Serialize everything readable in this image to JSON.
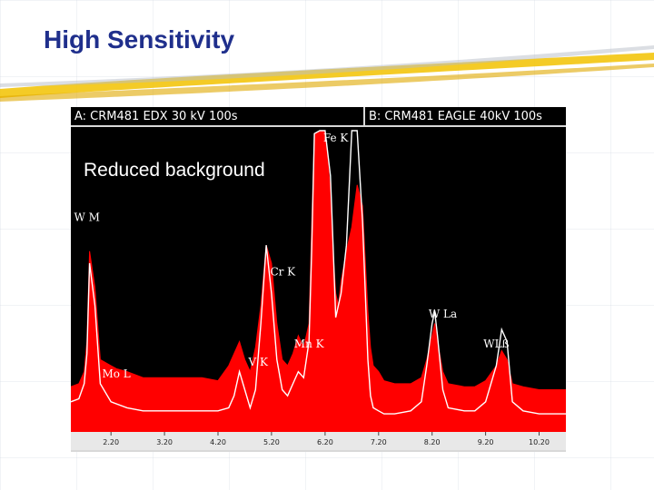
{
  "slide": {
    "title": "High Sensitivity"
  },
  "colors": {
    "title": "#1f2f8c",
    "spectrum_a_fill": "#ff0000",
    "spectrum_b_line": "#ffffff",
    "plot_background": "#000000",
    "swoosh": "#f2c200"
  },
  "chart_data": {
    "type": "area",
    "panel_labels": {
      "a": "A: CRM481 EDX 30 kV 100s",
      "b": "B: CRM481 EAGLE 40kV 100s"
    },
    "annotation": "Reduced background",
    "xlim": [
      1.45,
      10.7
    ],
    "x_ticks": [
      2.2,
      3.2,
      4.2,
      5.2,
      6.2,
      7.2,
      8.2,
      9.2,
      10.2
    ],
    "x_tick_labels": [
      "2.20",
      "3.20",
      "4.20",
      "5.20",
      "6.20",
      "7.20",
      "8.20",
      "9.20",
      "10.20"
    ],
    "ylim": [
      0,
      100
    ],
    "series": [
      {
        "name": "A: CRM481 EDX 30 kV 100s",
        "x": [
          1.45,
          1.6,
          1.7,
          1.75,
          1.8,
          1.9,
          2.0,
          2.2,
          2.3,
          2.5,
          2.8,
          3.2,
          3.6,
          3.9,
          4.2,
          4.4,
          4.5,
          4.6,
          4.7,
          4.8,
          4.9,
          5.0,
          5.1,
          5.2,
          5.3,
          5.4,
          5.5,
          5.6,
          5.7,
          5.8,
          5.9,
          5.95,
          6.0,
          6.1,
          6.2,
          6.3,
          6.35,
          6.4,
          6.45,
          6.5,
          6.6,
          6.7,
          6.8,
          6.9,
          7.0,
          7.05,
          7.1,
          7.2,
          7.3,
          7.5,
          7.8,
          8.0,
          8.1,
          8.2,
          8.25,
          8.3,
          8.4,
          8.5,
          8.8,
          9.0,
          9.2,
          9.4,
          9.5,
          9.6,
          9.7,
          9.9,
          10.2,
          10.5,
          10.7
        ],
        "values": [
          15,
          16,
          20,
          30,
          60,
          48,
          24,
          22,
          21,
          20,
          18,
          18,
          18,
          18,
          17,
          22,
          26,
          30,
          24,
          20,
          28,
          42,
          62,
          56,
          36,
          24,
          22,
          26,
          32,
          28,
          36,
          68,
          99,
          100,
          100,
          80,
          60,
          46,
          42,
          50,
          60,
          68,
          82,
          75,
          40,
          28,
          22,
          20,
          17,
          16,
          16,
          18,
          24,
          32,
          36,
          30,
          20,
          16,
          15,
          15,
          17,
          22,
          27,
          24,
          16,
          15,
          14,
          14,
          14
        ]
      },
      {
        "name": "B: CRM481 EAGLE 40kV 100s",
        "x": [
          1.45,
          1.6,
          1.7,
          1.75,
          1.8,
          1.9,
          2.0,
          2.2,
          2.5,
          2.8,
          3.2,
          3.6,
          3.9,
          4.2,
          4.4,
          4.5,
          4.6,
          4.7,
          4.8,
          4.9,
          5.0,
          5.1,
          5.2,
          5.3,
          5.4,
          5.5,
          5.6,
          5.7,
          5.8,
          5.9,
          5.95,
          6.0,
          6.1,
          6.2,
          6.3,
          6.35,
          6.4,
          6.5,
          6.6,
          6.7,
          6.8,
          6.9,
          7.0,
          7.05,
          7.1,
          7.2,
          7.3,
          7.5,
          7.8,
          8.0,
          8.1,
          8.2,
          8.25,
          8.3,
          8.4,
          8.5,
          8.8,
          9.0,
          9.2,
          9.4,
          9.5,
          9.6,
          9.7,
          9.9,
          10.2,
          10.5,
          10.7
        ],
        "values": [
          10,
          11,
          16,
          26,
          56,
          42,
          16,
          10,
          8,
          7,
          7,
          7,
          7,
          7,
          8,
          12,
          20,
          14,
          8,
          14,
          36,
          62,
          46,
          24,
          14,
          12,
          16,
          20,
          18,
          30,
          60,
          99,
          100,
          100,
          85,
          62,
          38,
          46,
          62,
          100,
          100,
          70,
          24,
          12,
          8,
          7,
          6,
          6,
          7,
          10,
          22,
          36,
          40,
          32,
          14,
          8,
          7,
          7,
          10,
          22,
          34,
          30,
          10,
          7,
          6,
          6,
          6
        ]
      }
    ],
    "peak_labels": [
      {
        "text": "Fe K",
        "x": 6.4,
        "level": 106
      },
      {
        "text": "W M",
        "x": 1.75,
        "level": 70
      },
      {
        "text": "Cr K",
        "x": 5.41,
        "level": 52
      },
      {
        "text": "W La",
        "x": 8.4,
        "level": 38
      },
      {
        "text": "Mn K",
        "x": 5.9,
        "level": 28
      },
      {
        "text": "WLß",
        "x": 9.4,
        "level": 28
      },
      {
        "text": "V K",
        "x": 4.95,
        "level": 22
      },
      {
        "text": "Mo L",
        "x": 2.3,
        "level": 18
      }
    ]
  }
}
